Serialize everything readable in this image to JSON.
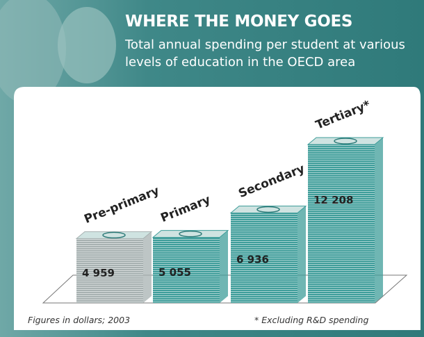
{
  "chart_data": {
    "type": "bar",
    "title": "WHERE THE MONEY GOES",
    "subtitle": "Total annual spending per student at various levels of education in the OECD area",
    "categories": [
      "Pre-primary",
      "Primary",
      "Secondary",
      "Tertiary*"
    ],
    "values": [
      4959,
      5055,
      6936,
      12208
    ],
    "value_labels": [
      "4 959",
      "5 055",
      "6 936",
      "12 208"
    ],
    "colors": [
      "#a7b1b1",
      "#3f9d9a",
      "#3f9d9a",
      "#3f9d9a"
    ],
    "notes": [
      "Figures in dollars; 2003",
      "* Excluding R&D spending"
    ]
  }
}
